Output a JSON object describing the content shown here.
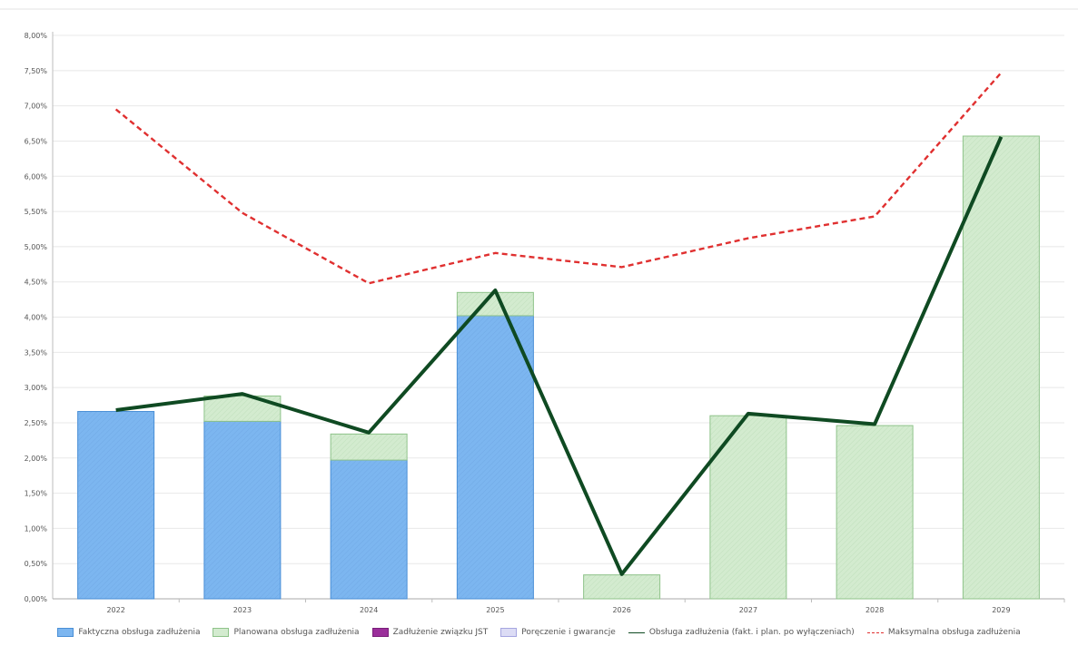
{
  "chart_data": {
    "type": "bar",
    "categories": [
      "2022",
      "2023",
      "2024",
      "2025",
      "2026",
      "2027",
      "2028",
      "2029"
    ],
    "ylim": [
      0,
      8.0
    ],
    "ytick_values": [
      0,
      0.5,
      1.0,
      1.5,
      2.0,
      2.5,
      3.0,
      3.5,
      4.0,
      4.5,
      5.0,
      5.5,
      6.0,
      6.5,
      7.0,
      7.5,
      8.0
    ],
    "ytick_labels": [
      "0,00%",
      "0,50%",
      "1,00%",
      "1,50%",
      "2,00%",
      "2,50%",
      "3,00%",
      "3,50%",
      "4,00%",
      "4,50%",
      "5,00%",
      "5,50%",
      "6,00%",
      "6,50%",
      "7,00%",
      "7,50%",
      "8,00%"
    ],
    "grid": true,
    "legend_position": "bottom",
    "series": [
      {
        "name": "Faktyczna obsługa zadłużenia",
        "kind": "bar",
        "color": "#7cb6f0",
        "values": [
          2.66,
          2.52,
          1.97,
          4.02,
          0,
          0,
          0,
          0
        ]
      },
      {
        "name": "Planowana obsługa zadłużenia",
        "kind": "bar",
        "color": "#d3ebcf",
        "values": [
          0,
          0.36,
          0.37,
          0.33,
          0.34,
          2.6,
          2.46,
          6.57
        ]
      },
      {
        "name": "Zadłużenie związku JST",
        "kind": "bar",
        "color": "#9b2f9b",
        "values": [
          0,
          0,
          0,
          0,
          0,
          0,
          0,
          0
        ]
      },
      {
        "name": "Poręczenie i gwarancje",
        "kind": "bar",
        "color": "#dcdcf5",
        "values": [
          0,
          0,
          0,
          0,
          0,
          0,
          0,
          0
        ]
      },
      {
        "name": "Obsługa zadłużenia (fakt. i plan. po wyłączeniach)",
        "kind": "line",
        "color": "#0f4a22",
        "values": [
          2.68,
          2.91,
          2.36,
          4.38,
          0.35,
          2.63,
          2.48,
          6.56
        ]
      },
      {
        "name": "Maksymalna obsługa zadłużenia",
        "kind": "dashed-line",
        "color": "#e03030",
        "values": [
          6.95,
          5.48,
          4.48,
          4.91,
          4.71,
          5.12,
          5.43,
          7.47
        ]
      }
    ]
  }
}
